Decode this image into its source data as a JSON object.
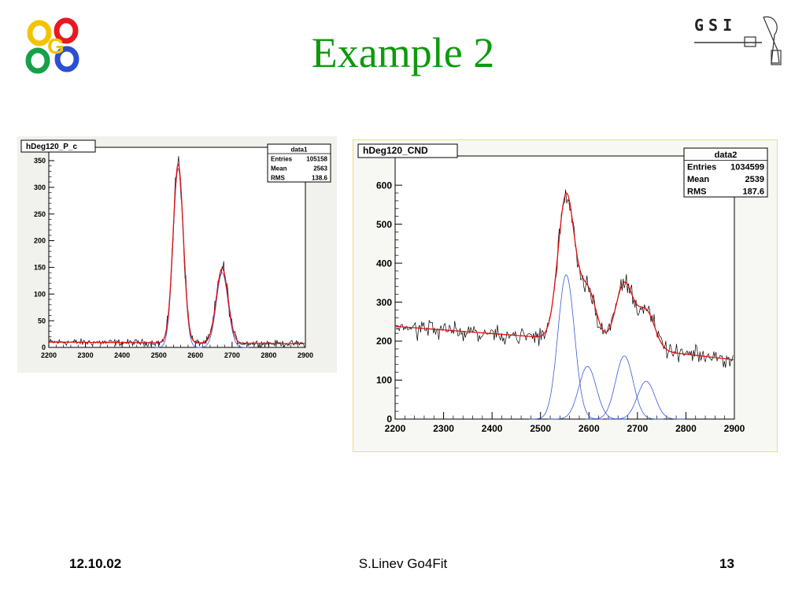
{
  "slide": {
    "title": "Example 2",
    "footer_date": "12.10.02",
    "footer_center": "S.Linev Go4Fit",
    "footer_page": "13",
    "logo_left_letter": "G",
    "logo_right_text": "GSI"
  },
  "chart_data": [
    {
      "type": "line",
      "title": "hDeg120_P_c",
      "xlabel": "",
      "ylabel": "",
      "xlim": [
        2200,
        2900
      ],
      "ylim": [
        0,
        375
      ],
      "x_ticks": [
        2200,
        2300,
        2400,
        2500,
        2600,
        2700,
        2800,
        2900
      ],
      "y_ticks": [
        0,
        50,
        100,
        150,
        200,
        250,
        300,
        350
      ],
      "stats": {
        "name": "data1",
        "rows": [
          {
            "label": "Entries",
            "value": "105158"
          },
          {
            "label": "Mean",
            "value": "2563"
          },
          {
            "label": "RMS",
            "value": "138.6"
          }
        ]
      },
      "background": [
        {
          "x": 2200,
          "y": 10
        },
        {
          "x": 2900,
          "y": 7
        }
      ],
      "components": [
        {
          "center": 2553,
          "sigma": 14,
          "amplitude": 335
        },
        {
          "center": 2673,
          "sigma": 16,
          "amplitude": 140
        }
      ],
      "colors": {
        "data": "#000000",
        "fit": "#e01010",
        "components": "#3a5ad8",
        "frame": "#000000"
      }
    },
    {
      "type": "line",
      "title": "hDeg120_CND",
      "xlabel": "",
      "ylabel": "",
      "xlim": [
        2200,
        2900
      ],
      "ylim": [
        0,
        675
      ],
      "x_ticks": [
        2200,
        2300,
        2400,
        2500,
        2600,
        2700,
        2800,
        2900
      ],
      "y_ticks": [
        0,
        100,
        200,
        300,
        400,
        500,
        600
      ],
      "stats": {
        "name": "data2",
        "rows": [
          {
            "label": "Entries",
            "value": "1034599"
          },
          {
            "label": "Mean",
            "value": "2539"
          },
          {
            "label": "RMS",
            "value": "187.6"
          }
        ]
      },
      "background": [
        {
          "x": 2200,
          "y": 238
        },
        {
          "x": 2500,
          "y": 210
        },
        {
          "x": 2900,
          "y": 152
        }
      ],
      "components": [
        {
          "center": 2553,
          "sigma": 17,
          "amplitude": 370
        },
        {
          "center": 2597,
          "sigma": 18,
          "amplitude": 135
        },
        {
          "center": 2673,
          "sigma": 18,
          "amplitude": 162
        },
        {
          "center": 2718,
          "sigma": 18,
          "amplitude": 97
        }
      ],
      "colors": {
        "data": "#000000",
        "fit": "#e01010",
        "components": "#3a5ad8",
        "frame": "#000000"
      }
    }
  ]
}
